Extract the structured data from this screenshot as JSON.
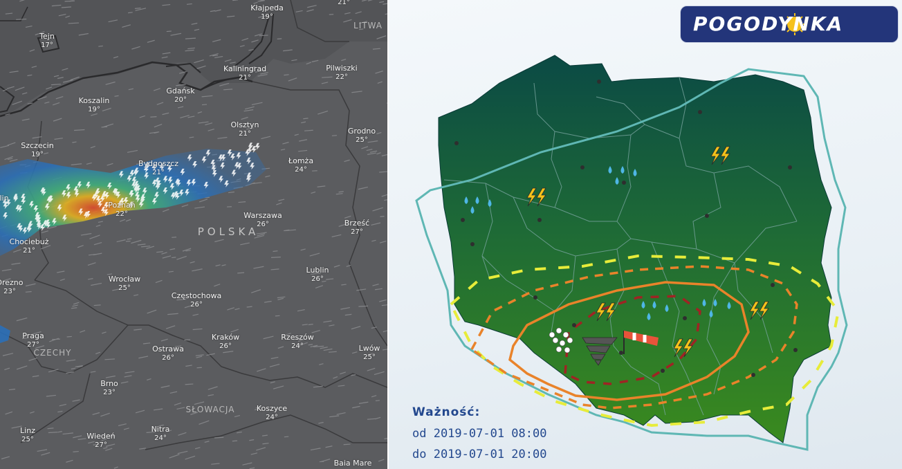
{
  "left_map": {
    "cities": [
      {
        "name": "Kłajpeda",
        "temp": "19°"
      },
      {
        "name": "Tejn",
        "temp": "17°"
      },
      {
        "name": "Kaliningrad",
        "temp": "21°"
      },
      {
        "name": "Pilwiszki",
        "temp": "22°"
      },
      {
        "name": "Koszalin",
        "temp": "19°"
      },
      {
        "name": "Gdańsk",
        "temp": "20°"
      },
      {
        "name": "Olsztyn",
        "temp": "21°"
      },
      {
        "name": "Grodno",
        "temp": "25°"
      },
      {
        "name": "Szczecin",
        "temp": "19°"
      },
      {
        "name": "Bydgoszcz",
        "temp": "21°"
      },
      {
        "name": "Łomża",
        "temp": "24°"
      },
      {
        "name": "Poznań",
        "temp": "22°"
      },
      {
        "name": "Warszawa",
        "temp": "26°"
      },
      {
        "name": "Brześć",
        "temp": "27°"
      },
      {
        "name": "Chociebuż",
        "temp": "21°"
      },
      {
        "name": "Wrocław",
        "temp": "25°"
      },
      {
        "name": "Lublin",
        "temp": "26°"
      },
      {
        "name": "Drezno",
        "temp": "23°"
      },
      {
        "name": "Częstochowa",
        "temp": "26°"
      },
      {
        "name": "Praga",
        "temp": "27°"
      },
      {
        "name": "Kraków",
        "temp": "26°"
      },
      {
        "name": "Rzeszów",
        "temp": "24°"
      },
      {
        "name": "Ostrawa",
        "temp": "26°"
      },
      {
        "name": "Lwów",
        "temp": "25°"
      },
      {
        "name": "Brno",
        "temp": "23°"
      },
      {
        "name": "Koszyce",
        "temp": "24°"
      },
      {
        "name": "Linz",
        "temp": "25°"
      },
      {
        "name": "Wiedeń",
        "temp": "27°"
      },
      {
        "name": "Nitra",
        "temp": "24°"
      }
    ],
    "partial_labels": {
      "top": "21°",
      "berlin": "lin",
      "baia": "Baia Mare"
    },
    "countries": {
      "lithuania": "LITWA",
      "poland": "POLSKA",
      "czech": "CZECHY",
      "slovakia": "SŁOWACJA"
    },
    "colors": {
      "background": "#5b5c5f",
      "storm_low": "#2a6fb8",
      "storm_mid": "#3fb07a",
      "storm_high": "#e6b21f",
      "storm_peak": "#e04a2a"
    }
  },
  "right_map": {
    "logo_text": "POGODYNKA",
    "validity_label": "Ważność:",
    "validity_from": "od 2019-07-01 08:00",
    "validity_to": "do 2019-07-01 20:00",
    "icons": [
      "rain-icon",
      "lightning-icon",
      "hail-icon",
      "tornado-icon",
      "windsock-icon"
    ],
    "colors": {
      "map_top": "#0b4a45",
      "map_bottom": "#3a8a1e",
      "warning_zone": "#5fb7b4",
      "level1": "#e7ec3a",
      "level2": "#e9832a",
      "level3": "#9e2424",
      "logo_bg": "#23357a",
      "validity_text": "#23488e"
    }
  }
}
